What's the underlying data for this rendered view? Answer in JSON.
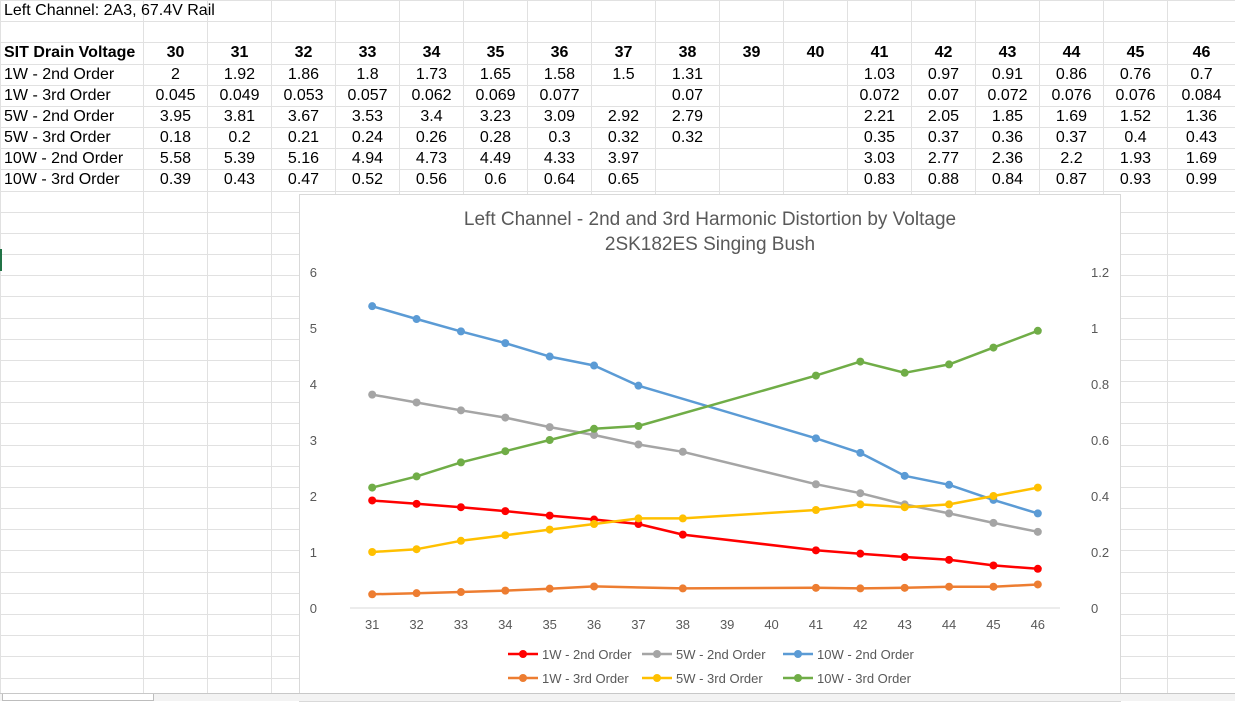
{
  "sheet": {
    "title": "Left Channel: 2A3, 67.4V Rail",
    "header_label": "SIT Drain Voltage",
    "columns": [
      "30",
      "31",
      "32",
      "33",
      "34",
      "35",
      "36",
      "37",
      "38",
      "39",
      "40",
      "41",
      "42",
      "43",
      "44",
      "45",
      "46"
    ],
    "rows": [
      {
        "label": "1W - 2nd Order",
        "values": [
          "2",
          "1.92",
          "1.86",
          "1.8",
          "1.73",
          "1.65",
          "1.58",
          "1.5",
          "1.31",
          "",
          "",
          "1.03",
          "0.97",
          "0.91",
          "0.86",
          "0.76",
          "0.7"
        ]
      },
      {
        "label": "1W - 3rd Order",
        "values": [
          "0.045",
          "0.049",
          "0.053",
          "0.057",
          "0.062",
          "0.069",
          "0.077",
          "",
          "0.07",
          "",
          "",
          "0.072",
          "0.07",
          "0.072",
          "0.076",
          "0.076",
          "0.084"
        ]
      },
      {
        "label": "5W - 2nd Order",
        "values": [
          "3.95",
          "3.81",
          "3.67",
          "3.53",
          "3.4",
          "3.23",
          "3.09",
          "2.92",
          "2.79",
          "",
          "",
          "2.21",
          "2.05",
          "1.85",
          "1.69",
          "1.52",
          "1.36"
        ]
      },
      {
        "label": "5W - 3rd Order",
        "values": [
          "0.18",
          "0.2",
          "0.21",
          "0.24",
          "0.26",
          "0.28",
          "0.3",
          "0.32",
          "0.32",
          "",
          "",
          "0.35",
          "0.37",
          "0.36",
          "0.37",
          "0.4",
          "0.43"
        ]
      },
      {
        "label": "10W - 2nd Order",
        "values": [
          "5.58",
          "5.39",
          "5.16",
          "4.94",
          "4.73",
          "4.49",
          "4.33",
          "3.97",
          "",
          "",
          "",
          "3.03",
          "2.77",
          "2.36",
          "2.2",
          "1.93",
          "1.69"
        ]
      },
      {
        "label": "10W - 3rd Order",
        "values": [
          "0.39",
          "0.43",
          "0.47",
          "0.52",
          "0.56",
          "0.6",
          "0.64",
          "0.65",
          "",
          "",
          "",
          "0.83",
          "0.88",
          "0.84",
          "0.87",
          "0.93",
          "0.99"
        ]
      }
    ]
  },
  "chart_data": {
    "type": "line",
    "title": "Left Channel - 2nd and 3rd Harmonic Distortion by Voltage",
    "subtitle": "2SK182ES Singing Bush",
    "categories": [
      "31",
      "32",
      "33",
      "34",
      "35",
      "36",
      "37",
      "38",
      "39",
      "40",
      "41",
      "42",
      "43",
      "44",
      "45",
      "46"
    ],
    "y_left": {
      "min": 0,
      "max": 6,
      "ticks": [
        "0",
        "1",
        "2",
        "3",
        "4",
        "5",
        "6"
      ]
    },
    "y_right": {
      "min": 0,
      "max": 1.2,
      "ticks": [
        "0",
        "0.2",
        "0.4",
        "0.6",
        "0.8",
        "1",
        "1.2"
      ]
    },
    "grid": false,
    "legend_position": "bottom",
    "series": [
      {
        "name": "1W - 2nd Order",
        "axis": "left",
        "color": "#ff0000",
        "values": [
          1.92,
          1.86,
          1.8,
          1.73,
          1.65,
          1.58,
          1.5,
          1.31,
          null,
          null,
          1.03,
          0.97,
          0.91,
          0.86,
          0.76,
          0.7
        ]
      },
      {
        "name": "5W - 2nd Order",
        "axis": "left",
        "color": "#a5a5a5",
        "values": [
          3.81,
          3.67,
          3.53,
          3.4,
          3.23,
          3.09,
          2.92,
          2.79,
          null,
          null,
          2.21,
          2.05,
          1.85,
          1.69,
          1.52,
          1.36
        ]
      },
      {
        "name": "10W - 2nd Order",
        "axis": "left",
        "color": "#5b9bd5",
        "values": [
          5.39,
          5.16,
          4.94,
          4.73,
          4.49,
          4.33,
          3.97,
          null,
          null,
          null,
          3.03,
          2.77,
          2.36,
          2.2,
          1.93,
          1.69
        ]
      },
      {
        "name": "1W - 3rd Order",
        "axis": "right",
        "color": "#ed7d31",
        "values": [
          0.049,
          0.053,
          0.057,
          0.062,
          0.069,
          0.077,
          null,
          0.07,
          null,
          null,
          0.072,
          0.07,
          0.072,
          0.076,
          0.076,
          0.084
        ]
      },
      {
        "name": "5W - 3rd Order",
        "axis": "right",
        "color": "#ffc000",
        "values": [
          0.2,
          0.21,
          0.24,
          0.26,
          0.28,
          0.3,
          0.32,
          0.32,
          null,
          null,
          0.35,
          0.37,
          0.36,
          0.37,
          0.4,
          0.43
        ]
      },
      {
        "name": "10W - 3rd Order",
        "axis": "right",
        "color": "#70ad47",
        "values": [
          0.43,
          0.47,
          0.52,
          0.56,
          0.6,
          0.64,
          0.65,
          null,
          null,
          null,
          0.83,
          0.88,
          0.84,
          0.87,
          0.93,
          0.99
        ]
      }
    ]
  }
}
